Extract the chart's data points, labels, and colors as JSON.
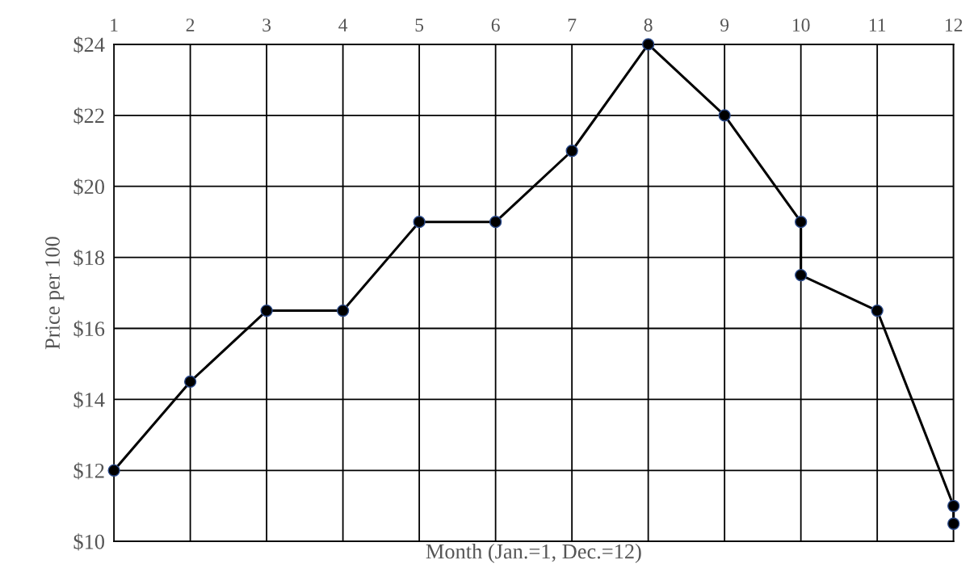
{
  "chart_data": {
    "type": "line",
    "xlabel": "Month (Jan.=1, Dec.=12)",
    "ylabel": "Price per 100",
    "series": [
      {
        "color": "#000000",
        "x": [
          1,
          2,
          3,
          4,
          5,
          6,
          7,
          8,
          9,
          10,
          10,
          11,
          12,
          12
        ],
        "values": [
          12,
          14.5,
          16.5,
          16.5,
          19,
          19,
          21,
          24,
          22,
          19,
          17.5,
          16.5,
          11,
          10.5
        ]
      }
    ],
    "xlim": [
      1,
      12
    ],
    "xticks": [
      1,
      2,
      3,
      4,
      5,
      6,
      7,
      8,
      9,
      10,
      11,
      12
    ],
    "ylim": [
      10,
      24
    ],
    "yticks": [
      {
        "value": 10,
        "label": "$10"
      },
      {
        "value": 12,
        "label": "$12"
      },
      {
        "value": 14,
        "label": "$14"
      },
      {
        "value": 16,
        "label": "$16"
      },
      {
        "value": 18,
        "label": "$18"
      },
      {
        "value": 20,
        "label": "$20"
      },
      {
        "value": 22,
        "label": "$22"
      },
      {
        "value": 24,
        "label": "$24"
      }
    ],
    "grid": true,
    "marker": "circle",
    "line_style": "solid"
  }
}
